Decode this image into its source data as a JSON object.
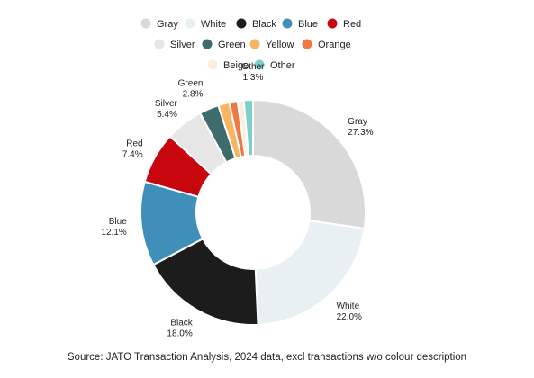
{
  "chart_data": {
    "type": "pie",
    "style": "donut",
    "title": "",
    "legend_placement": "top",
    "label_style": "outside",
    "categories": [
      "Gray",
      "White",
      "Black",
      "Blue",
      "Red",
      "Silver",
      "Green",
      "Yellow",
      "Orange",
      "Beige",
      "Other"
    ],
    "values": [
      27.3,
      22.0,
      18.0,
      12.1,
      7.4,
      5.4,
      2.8,
      1.6,
      1.2,
      0.9,
      1.3
    ],
    "value_labels": [
      "27.3%",
      "22.0%",
      "18.0%",
      "12.1%",
      "7.4%",
      "5.4%",
      "2.8%",
      "",
      "",
      "",
      "1.3%"
    ],
    "colors": [
      "#d9d9d9",
      "#e8f0f4",
      "#1c1c1c",
      "#3f8fb8",
      "#c8060e",
      "#e6e6e6",
      "#3e6b6b",
      "#f8b463",
      "#ef7845",
      "#faefdf",
      "#7ccfc9"
    ]
  },
  "source": "Source: JATO Transaction Analysis, 2024 data, excl transactions w/o colour description"
}
